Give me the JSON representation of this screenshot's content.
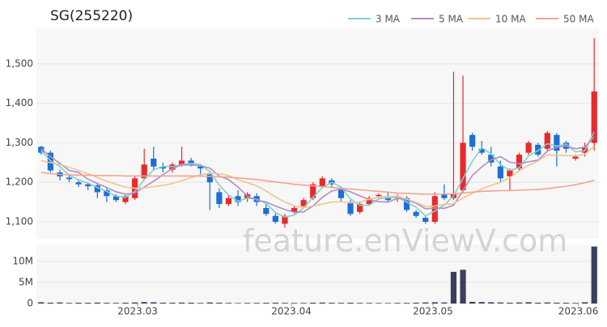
{
  "watermark": "feature.enViewV.com",
  "chart_data": [
    {
      "type": "candlestick",
      "title": "SG(255220)",
      "x": [
        0,
        1,
        2,
        3,
        4,
        5,
        6,
        7,
        8,
        9,
        10,
        11,
        12,
        13,
        14,
        15,
        16,
        17,
        18,
        19,
        20,
        21,
        22,
        23,
        24,
        25,
        26,
        27,
        28,
        29,
        30,
        31,
        32,
        33,
        34,
        35,
        36,
        37,
        38,
        39,
        40,
        41,
        42,
        43,
        44,
        45,
        46,
        47,
        48,
        49,
        50,
        51,
        52,
        53,
        54,
        55,
        56,
        57,
        58,
        59
      ],
      "xlim": [
        -0.5,
        59.5
      ],
      "open": [
        1290,
        1275,
        1225,
        1212,
        1200,
        1195,
        1192,
        1180,
        1165,
        1150,
        1160,
        1210,
        1260,
        1240,
        1232,
        1245,
        1255,
        1240,
        1220,
        1175,
        1145,
        1165,
        1160,
        1165,
        1135,
        1115,
        1095,
        1125,
        1140,
        1160,
        1190,
        1205,
        1185,
        1150,
        1125,
        1145,
        1165,
        1165,
        1160,
        1160,
        1125,
        1110,
        1100,
        1170,
        1160,
        1180,
        1320,
        1285,
        1270,
        1240,
        1215,
        1235,
        1275,
        1295,
        1285,
        1320,
        1300,
        1260,
        1275,
        1300
      ],
      "high": [
        1292,
        1280,
        1232,
        1218,
        1205,
        1200,
        1198,
        1185,
        1170,
        1170,
        1215,
        1285,
        1290,
        1250,
        1250,
        1290,
        1262,
        1245,
        1225,
        1185,
        1170,
        1180,
        1175,
        1172,
        1145,
        1125,
        1120,
        1140,
        1160,
        1200,
        1215,
        1210,
        1190,
        1155,
        1150,
        1165,
        1172,
        1175,
        1170,
        1165,
        1130,
        1115,
        1175,
        1195,
        1480,
        1470,
        1325,
        1305,
        1290,
        1255,
        1235,
        1275,
        1305,
        1300,
        1330,
        1325,
        1305,
        1270,
        1300,
        1565
      ],
      "low": [
        1270,
        1225,
        1205,
        1200,
        1188,
        1180,
        1160,
        1150,
        1150,
        1145,
        1155,
        1205,
        1230,
        1225,
        1225,
        1240,
        1240,
        1220,
        1130,
        1135,
        1140,
        1140,
        1150,
        1140,
        1115,
        1095,
        1085,
        1120,
        1135,
        1155,
        1185,
        1185,
        1150,
        1115,
        1120,
        1140,
        1160,
        1150,
        1150,
        1125,
        1110,
        1095,
        1095,
        1155,
        1155,
        1175,
        1280,
        1270,
        1240,
        1200,
        1180,
        1230,
        1270,
        1265,
        1280,
        1240,
        1275,
        1255,
        1265,
        1280
      ],
      "close": [
        1275,
        1230,
        1215,
        1208,
        1195,
        1190,
        1175,
        1165,
        1155,
        1165,
        1210,
        1245,
        1240,
        1235,
        1245,
        1255,
        1245,
        1235,
        1200,
        1145,
        1160,
        1150,
        1170,
        1150,
        1120,
        1100,
        1115,
        1135,
        1155,
        1195,
        1210,
        1195,
        1160,
        1120,
        1145,
        1160,
        1168,
        1155,
        1165,
        1130,
        1115,
        1100,
        1165,
        1160,
        1170,
        1300,
        1290,
        1275,
        1250,
        1210,
        1230,
        1270,
        1300,
        1270,
        1325,
        1280,
        1285,
        1265,
        1290,
        1430
      ],
      "up_color": "#e8292b",
      "down_color": "#1b6fd6",
      "ylim": [
        1057,
        1590
      ],
      "yticks": [
        {
          "value": 1100,
          "label": "1,100"
        },
        {
          "value": 1200,
          "label": "1,200"
        },
        {
          "value": 1300,
          "label": "1,300"
        },
        {
          "value": 1400,
          "label": "1,400"
        },
        {
          "value": 1500,
          "label": "1,500"
        }
      ],
      "series": [
        {
          "name": "3 MA",
          "color": "#7fd0cf",
          "values": [
            1280,
            1255,
            1240,
            1218,
            1206,
            1198,
            1187,
            1177,
            1165,
            1162,
            1177,
            1207,
            1232,
            1240,
            1240,
            1245,
            1248,
            1245,
            1227,
            1193,
            1168,
            1152,
            1160,
            1157,
            1147,
            1123,
            1112,
            1117,
            1135,
            1162,
            1187,
            1200,
            1188,
            1158,
            1142,
            1142,
            1158,
            1161,
            1163,
            1150,
            1137,
            1115,
            1127,
            1142,
            1165,
            1210,
            1253,
            1288,
            1272,
            1245,
            1230,
            1237,
            1267,
            1280,
            1298,
            1292,
            1297,
            1277,
            1280,
            1328
          ]
        },
        {
          "name": "5 MA",
          "color": "#b18dc9",
          "values": [
            1285,
            1265,
            1248,
            1230,
            1225,
            1208,
            1197,
            1187,
            1176,
            1170,
            1173,
            1188,
            1203,
            1219,
            1235,
            1244,
            1244,
            1242,
            1236,
            1216,
            1207,
            1188,
            1165,
            1155,
            1150,
            1140,
            1131,
            1124,
            1125,
            1140,
            1162,
            1178,
            1183,
            1176,
            1166,
            1156,
            1151,
            1150,
            1159,
            1156,
            1147,
            1133,
            1135,
            1134,
            1142,
            1179,
            1217,
            1239,
            1257,
            1265,
            1251,
            1247,
            1252,
            1256,
            1279,
            1289,
            1292,
            1285,
            1289,
            1315
          ]
        },
        {
          "name": "10 MA",
          "color": "#f2c48c",
          "values": [
            1255,
            1250,
            1245,
            1238,
            1230,
            1222,
            1212,
            1203,
            1195,
            1188,
            1185,
            1186,
            1189,
            1192,
            1197,
            1204,
            1212,
            1219,
            1223,
            1222,
            1217,
            1207,
            1199,
            1191,
            1178,
            1163,
            1150,
            1140,
            1136,
            1140,
            1145,
            1150,
            1151,
            1148,
            1150,
            1157,
            1162,
            1164,
            1165,
            1158,
            1149,
            1139,
            1140,
            1144,
            1146,
            1160,
            1172,
            1183,
            1192,
            1200,
            1212,
            1229,
            1243,
            1254,
            1270,
            1268,
            1268,
            1267,
            1271,
            1291
          ]
        },
        {
          "name": "50 MA",
          "color": "#f2a393",
          "values": [
            1225,
            1222,
            1220,
            1219,
            1218,
            1218,
            1217,
            1217,
            1217,
            1216,
            1216,
            1216,
            1216,
            1216,
            1216,
            1216,
            1216,
            1216,
            1215,
            1214,
            1213,
            1211,
            1209,
            1207,
            1204,
            1201,
            1198,
            1195,
            1193,
            1191,
            1189,
            1187,
            1185,
            1183,
            1181,
            1179,
            1177,
            1175,
            1173,
            1172,
            1171,
            1170,
            1170,
            1170,
            1171,
            1173,
            1175,
            1177,
            1178,
            1179,
            1179,
            1180,
            1181,
            1182,
            1184,
            1187,
            1190,
            1194,
            1199,
            1205
          ]
        }
      ]
    },
    {
      "type": "bar",
      "color": "#3a3f5c",
      "values": [
        300000,
        200000,
        250000,
        150000,
        200000,
        180000,
        220000,
        160000,
        150000,
        200000,
        250000,
        350000,
        300000,
        200000,
        180000,
        220000,
        200000,
        150000,
        250000,
        200000,
        150000,
        120000,
        140000,
        150000,
        180000,
        200000,
        160000,
        140000,
        150000,
        200000,
        220000,
        180000,
        160000,
        200000,
        150000,
        140000,
        130000,
        120000,
        150000,
        160000,
        200000,
        250000,
        300000,
        250000,
        7500000,
        8000000,
        400000,
        350000,
        300000,
        250000,
        200000,
        250000,
        300000,
        200000,
        250000,
        200000,
        180000,
        150000,
        300000,
        13500000
      ],
      "ylim": [
        0,
        14000000
      ],
      "yticks": [
        0,
        {
          "value": 5000000,
          "label": "5M"
        },
        {
          "value": 10000000,
          "label": "10M"
        }
      ],
      "xlim": [
        -0.5,
        59.5
      ],
      "xticks": [
        {
          "value": 10.3,
          "label": "2023.03"
        },
        {
          "value": 26.7,
          "label": "2023.04"
        },
        {
          "value": 41.8,
          "label": "2023.05"
        },
        {
          "value": 57.3,
          "label": "2023.06"
        }
      ]
    }
  ]
}
